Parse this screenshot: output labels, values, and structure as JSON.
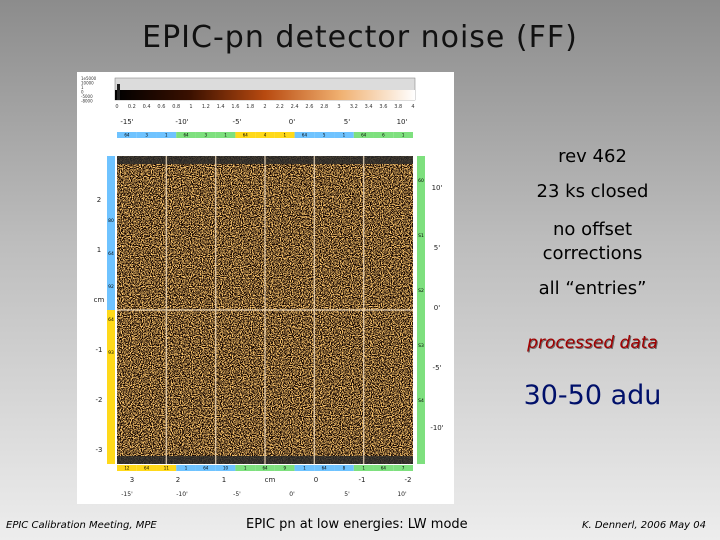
{
  "slide": {
    "title": "EPIC-pn detector noise  (FF)",
    "notes": {
      "rev": "rev 462",
      "exposure": "23 ks closed",
      "offset_line1": "no offset",
      "offset_line2": "corrections",
      "entries": "all “entries”",
      "processed": "processed data",
      "adu_range": "30-50 adu"
    },
    "footer": {
      "left": "EPIC Calibration Meeting, MPE",
      "center": "EPIC pn at low energies: LW mode",
      "right": "K. Dennerl, 2006 May 04"
    }
  },
  "figure": {
    "colorbar_ticks": [
      "0",
      "0.2",
      "0.4",
      "0.6",
      "0.8",
      "1",
      "1.2",
      "1.4",
      "1.6",
      "1.8",
      "2",
      "2.2",
      "2.4",
      "2.6",
      "2.8",
      "3",
      "3.2",
      "3.4",
      "3.6",
      "3.8",
      "4"
    ],
    "colorbar_left_labels": [
      "1e5000",
      "10000",
      "1",
      "0",
      "-5000",
      "-8000"
    ],
    "top_arcmin": [
      "-15'",
      "-10'",
      "-5'",
      "0'",
      "5'",
      "10'"
    ],
    "right_arcmin": [
      "10'",
      "5'",
      "0'",
      "-5'",
      "-10'"
    ],
    "left_cm": [
      "2",
      "1",
      "cm",
      "-1",
      "-2",
      "-3"
    ],
    "bottom_cm": [
      "3",
      "2",
      "1",
      "cm",
      "0",
      "-1",
      "-2"
    ],
    "bottom_arcmin": [
      "-15'",
      "-10'",
      "-5'",
      "0'",
      "5'",
      "10'"
    ],
    "ccd_top_codes": [
      "64",
      "3",
      "1",
      "64",
      "3",
      "1",
      "64",
      "4",
      "1",
      "64",
      "5",
      "1",
      "64",
      "6",
      "1"
    ],
    "ccd_bottom_codes": [
      "12",
      "64",
      "11",
      "1",
      "64",
      "10",
      "1",
      "64",
      "9",
      "1",
      "64",
      "8",
      "1",
      "64",
      "7"
    ],
    "left_strip_codes": [
      "80",
      "64",
      "92",
      "64",
      "93"
    ],
    "right_strip_codes": [
      "60",
      "S1",
      "S2",
      "S3",
      "S4"
    ]
  }
}
